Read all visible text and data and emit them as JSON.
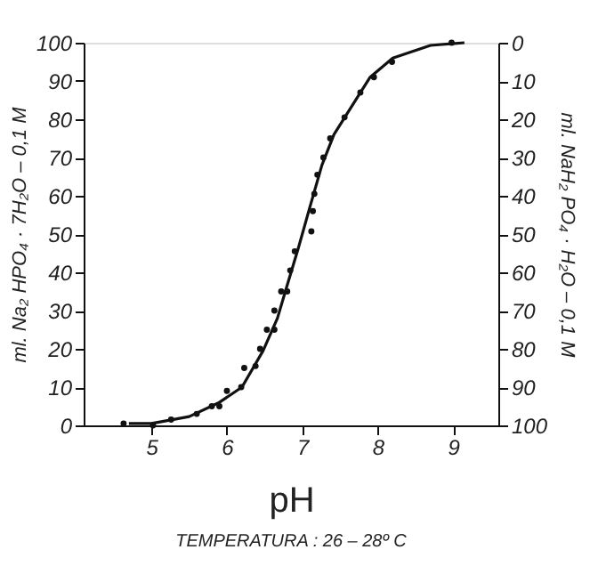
{
  "chart_data": {
    "type": "line",
    "xlabel": "pH",
    "ylabel": "ml. Na₂ HPO₄ · 7H₂O – 0,1 M",
    "y2label": "ml. NaH₂ PO₄ · H₂O – 0,1 M",
    "annotations": [
      "TEMPERATURA : 26 – 28º C"
    ],
    "xlim": [
      4.1,
      9.6
    ],
    "xticks": [
      5,
      6,
      7,
      8,
      9
    ],
    "ylim": [
      0,
      100
    ],
    "yticks": [
      0,
      10,
      20,
      30,
      40,
      50,
      60,
      70,
      80,
      90,
      100
    ],
    "y2lim": [
      100,
      0
    ],
    "y2ticks": [
      0,
      10,
      20,
      30,
      40,
      50,
      60,
      70,
      80,
      90,
      100
    ],
    "grid": false,
    "series": [
      {
        "color": "#111111",
        "line_style": "solid",
        "marker": "none",
        "x": [
          4.7,
          5.0,
          5.5,
          5.9,
          6.2,
          6.48,
          6.67,
          6.79,
          6.95,
          7.1,
          7.26,
          7.42,
          7.58,
          7.9,
          8.2,
          8.7,
          9.15
        ],
        "values": [
          0.5,
          0.5,
          2.3,
          6,
          10,
          19.5,
          28,
          36,
          46.5,
          57,
          68,
          76,
          81,
          91,
          96,
          99.3,
          100
        ]
      },
      {
        "type": "scatter",
        "color": "#111111",
        "marker": "circle",
        "x": [
          4.63,
          5.02,
          5.26,
          5.6,
          5.8,
          5.9,
          6.0,
          6.19,
          6.23,
          6.38,
          6.44,
          6.53,
          6.63,
          6.63,
          6.72,
          6.8,
          6.84,
          6.9,
          7.12,
          7.14,
          7.16,
          7.2,
          7.28,
          7.37,
          7.56,
          7.77,
          7.95,
          8.19,
          8.98
        ],
        "values": [
          0.5,
          0,
          1.5,
          3,
          5,
          5,
          9,
          10,
          15,
          15.5,
          20,
          25,
          25,
          30,
          35,
          35,
          40.5,
          45.5,
          50.7,
          56,
          60.5,
          65.5,
          70,
          75,
          80.5,
          87,
          91,
          95,
          100
        ]
      }
    ]
  }
}
